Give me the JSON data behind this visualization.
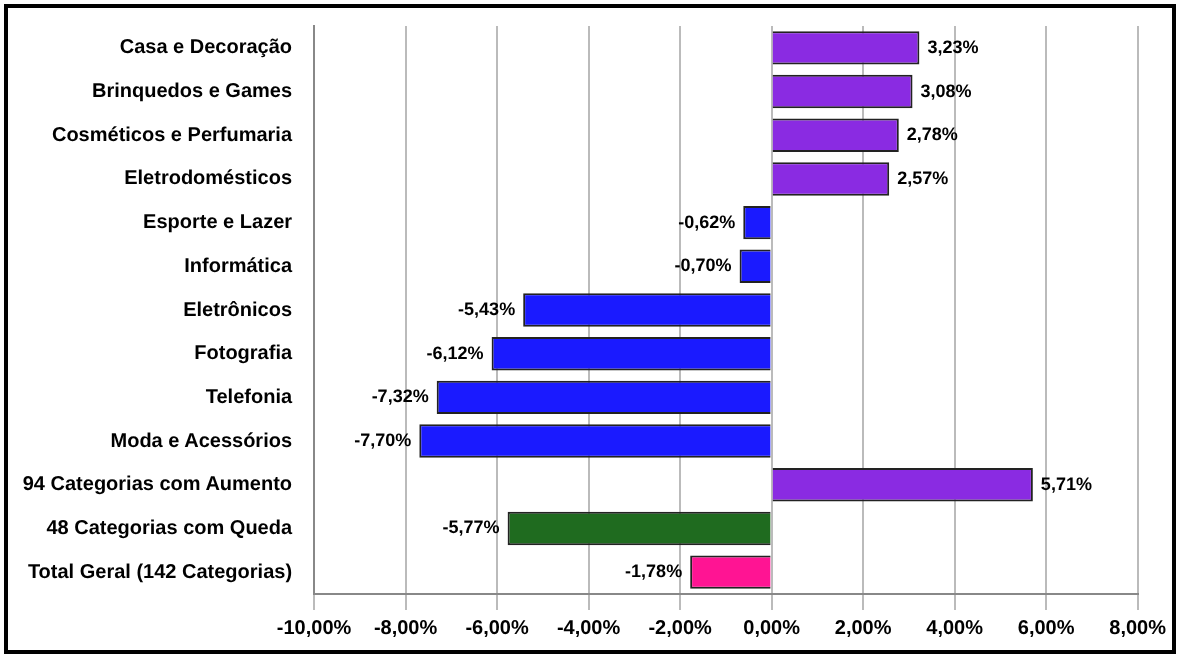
{
  "chart_data": {
    "type": "bar",
    "orientation": "horizontal",
    "categories": [
      "Casa e Decoração",
      "Brinquedos e Games",
      "Cosméticos e Perfumaria",
      "Eletrodomésticos",
      "Esporte e Lazer",
      "Informática",
      "Eletrônicos",
      "Fotografia",
      "Telefonia",
      "Moda e Acessórios",
      "94 Categorias com Aumento",
      "48 Categorias com Queda",
      "Total Geral (142 Categorias)"
    ],
    "values": [
      3.23,
      3.08,
      2.78,
      2.57,
      -0.62,
      -0.7,
      -5.43,
      -6.12,
      -7.32,
      -7.7,
      5.71,
      -5.77,
      -1.78
    ],
    "colors": [
      "#8a2be2",
      "#8a2be2",
      "#8a2be2",
      "#8a2be2",
      "#1a1aff",
      "#1a1aff",
      "#1a1aff",
      "#1a1aff",
      "#1a1aff",
      "#1a1aff",
      "#8a2be2",
      "#1f6b1f",
      "#ff1493"
    ],
    "value_labels": [
      "3,23%",
      "3,08%",
      "2,78%",
      "2,57%",
      "-0,62%",
      "-0,70%",
      "-5,43%",
      "-6,12%",
      "-7,32%",
      "-7,70%",
      "5,71%",
      "-5,77%",
      "-1,78%"
    ],
    "xlim": [
      -10,
      8
    ],
    "xticks": [
      {
        "value": -10,
        "label": "-10,00%"
      },
      {
        "value": -8,
        "label": "-8,00%"
      },
      {
        "value": -6,
        "label": "-6,00%"
      },
      {
        "value": -4,
        "label": "-4,00%"
      },
      {
        "value": -2,
        "label": "-2,00%"
      },
      {
        "value": 0,
        "label": "0,00%"
      },
      {
        "value": 2,
        "label": "2,00%"
      },
      {
        "value": 4,
        "label": "4,00%"
      },
      {
        "value": 6,
        "label": "6,00%"
      },
      {
        "value": 8,
        "label": "8,00%"
      }
    ],
    "grid": "x",
    "legend": false
  }
}
